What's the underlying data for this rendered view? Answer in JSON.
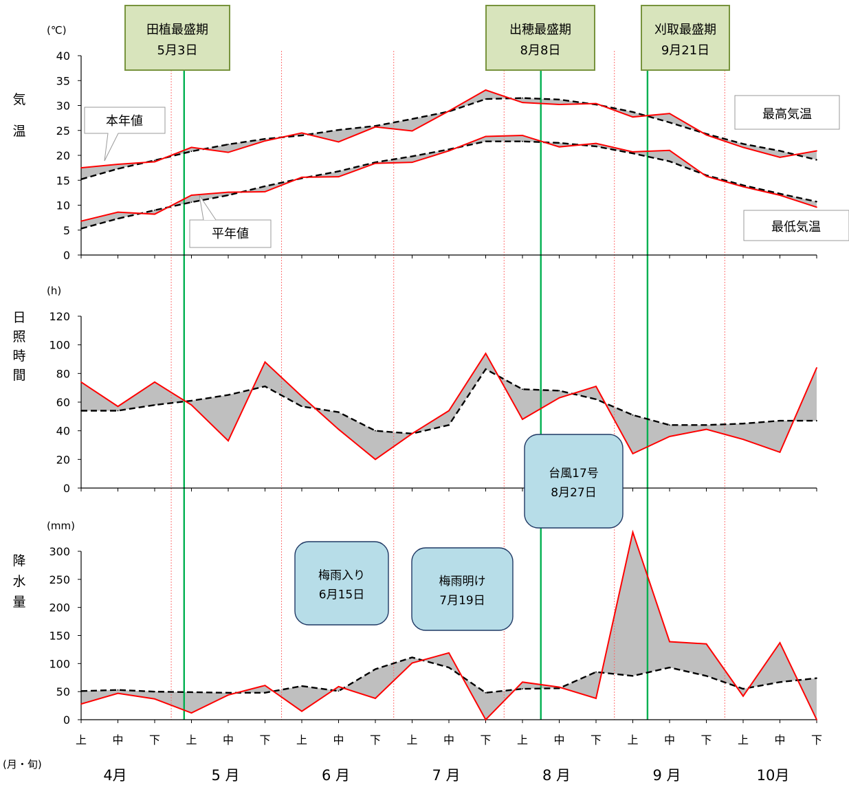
{
  "chart_data": [
    {
      "type": "line",
      "unit": "(℃)",
      "ylabel": "気温",
      "ylim": [
        0,
        40
      ],
      "yticks": [
        0,
        5,
        10,
        15,
        20,
        25,
        30,
        35,
        40
      ],
      "legend_max": "最高気温",
      "legend_min": "最低気温",
      "callout_current": "本年値",
      "callout_normal": "平年値",
      "series": [
        {
          "name": "最高気温",
          "kind": "current",
          "values": [
            17.5,
            18.2,
            18.7,
            21.6,
            20.6,
            22.9,
            24.5,
            22.7,
            25.7,
            24.9,
            28.9,
            33.1,
            30.6,
            30.2,
            30.4,
            27.7,
            28.4,
            24.1,
            21.6,
            19.6,
            20.9
          ]
        },
        {
          "name": "最高気温",
          "kind": "normal",
          "values": [
            15.2,
            17.3,
            19.0,
            20.8,
            22.2,
            23.3,
            24.0,
            25.1,
            25.9,
            27.3,
            28.8,
            31.3,
            31.5,
            31.2,
            30.2,
            28.7,
            26.6,
            24.3,
            22.3,
            20.9,
            19.1
          ]
        },
        {
          "name": "最低気温",
          "kind": "current",
          "values": [
            6.8,
            8.6,
            8.2,
            12.0,
            12.6,
            12.7,
            15.6,
            15.7,
            18.4,
            18.6,
            20.9,
            23.8,
            24.0,
            21.7,
            22.4,
            20.7,
            21.0,
            15.8,
            13.7,
            12.0,
            9.6
          ]
        },
        {
          "name": "最低気温",
          "kind": "normal",
          "values": [
            5.3,
            7.3,
            9.0,
            10.6,
            12.0,
            13.8,
            15.4,
            16.8,
            18.6,
            19.8,
            21.2,
            22.8,
            22.8,
            22.5,
            21.8,
            20.4,
            18.8,
            16.0,
            14.0,
            12.3,
            10.7
          ]
        }
      ]
    },
    {
      "type": "line",
      "unit": "(h)",
      "ylabel": "日照時間",
      "ylim": [
        0,
        120
      ],
      "yticks": [
        0,
        20,
        40,
        60,
        80,
        100,
        120
      ],
      "series": [
        {
          "kind": "current",
          "values": [
            74,
            57,
            74,
            58,
            33,
            88,
            64,
            41,
            20,
            38,
            54,
            94,
            48,
            63,
            71,
            24,
            36,
            41,
            34,
            25,
            84
          ]
        },
        {
          "kind": "normal",
          "values": [
            54,
            54,
            58,
            61,
            65,
            71,
            57,
            53,
            40,
            38,
            44,
            83,
            69,
            68,
            62,
            51,
            44,
            44,
            45,
            47,
            47
          ]
        }
      ]
    },
    {
      "type": "line",
      "unit": "(mm)",
      "ylabel": "降水量",
      "ylim": [
        0,
        300
      ],
      "yticks": [
        0,
        50,
        100,
        150,
        200,
        250,
        300
      ],
      "series": [
        {
          "kind": "current",
          "values": [
            28,
            47,
            37,
            12,
            44,
            61,
            15,
            59,
            38,
            101,
            119,
            0,
            67,
            58,
            38,
            334,
            139,
            135,
            42,
            137,
            0
          ]
        },
        {
          "kind": "normal",
          "values": [
            51,
            53,
            50,
            49,
            48,
            48,
            60,
            51,
            90,
            111,
            93,
            48,
            55,
            56,
            85,
            78,
            93,
            78,
            55,
            67,
            74
          ]
        }
      ]
    }
  ],
  "xaxis": {
    "decade_labels": [
      "上",
      "中",
      "下",
      "上",
      "中",
      "下",
      "上",
      "中",
      "下",
      "上",
      "中",
      "下",
      "上",
      "中",
      "下",
      "上",
      "中",
      "下",
      "上",
      "中",
      "下"
    ],
    "months": [
      "4月",
      "5 月",
      "6 月",
      "7 月",
      "8 月",
      "9 月",
      "10月"
    ],
    "caption": "(月・旬)"
  },
  "markers": {
    "month_boundaries": [
      2.45,
      5.45,
      8.5,
      11.5,
      14.5,
      17.5
    ],
    "stage_lines": [
      {
        "x": 2.8,
        "label_line1": "田植最盛期",
        "label_line2": "5月3日"
      },
      {
        "x": 12.5,
        "label_line1": "出穂最盛期",
        "label_line2": "8月8日"
      },
      {
        "x": 15.4,
        "label_line1": "刈取最盛期",
        "label_line2": "9月21日"
      }
    ],
    "events": [
      {
        "label_line1": "梅雨入り",
        "label_line2": "6月15日"
      },
      {
        "label_line1": "梅雨明け",
        "label_line2": "7月19日"
      },
      {
        "label_line1": "台風17号",
        "label_line2": "8月27日"
      }
    ]
  },
  "colors": {
    "current": "#ff0000",
    "normal": "#000000",
    "diff_fill": "#bfbfbf",
    "stage_line": "#00b050",
    "month_line": "#ff6060",
    "stage_box_fill": "#d8e4bc",
    "stage_box_border": "#77933c",
    "event_fill": "#b7dde8",
    "event_border": "#1f3864"
  }
}
